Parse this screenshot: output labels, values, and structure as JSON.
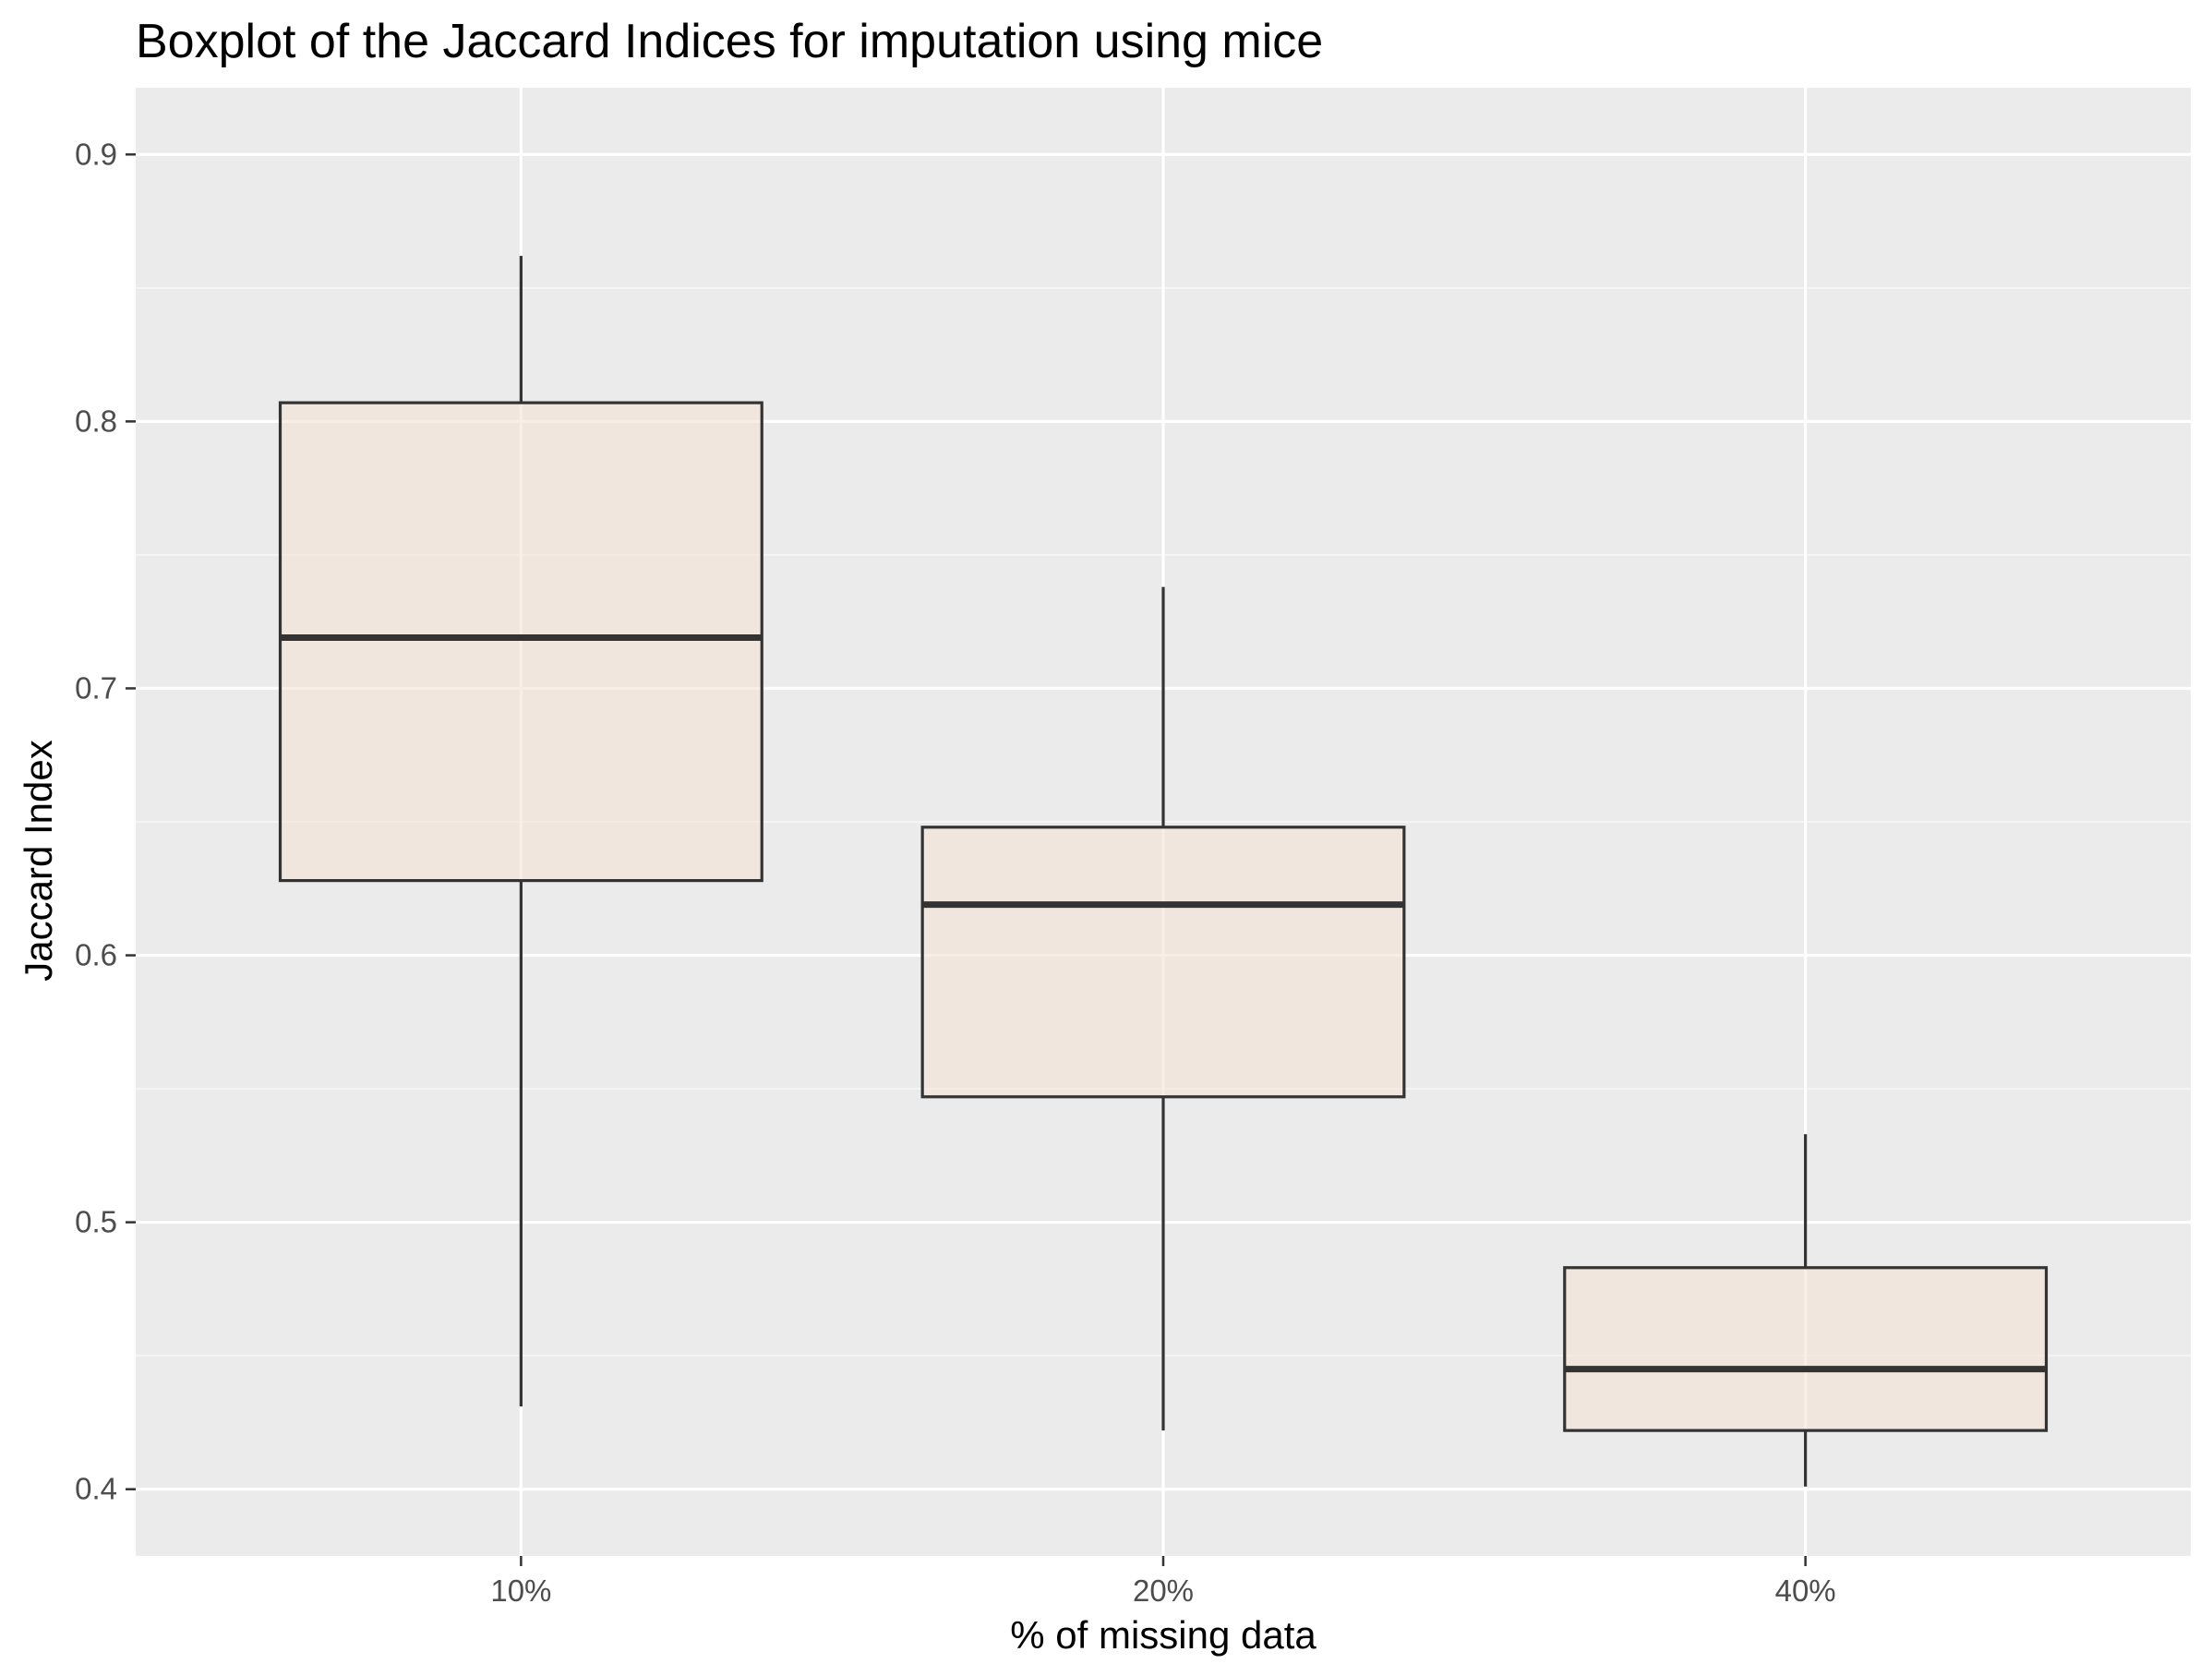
{
  "chart_data": {
    "type": "boxplot",
    "title": "Boxplot of the Jaccard Indices for imputation using mice",
    "xlabel": "% of missing data",
    "ylabel": "Jaccard Index",
    "categories": [
      "10%",
      "20%",
      "40%"
    ],
    "y_ticks": [
      "0.4",
      "0.5",
      "0.6",
      "0.7",
      "0.8",
      "0.9"
    ],
    "y_tick_values": [
      0.4,
      0.5,
      0.6,
      0.7,
      0.8,
      0.9
    ],
    "ylim": [
      0.375,
      0.925
    ],
    "grid": true,
    "boxes": [
      {
        "category": "10%",
        "min": 0.431,
        "q1": 0.628,
        "median": 0.719,
        "q3": 0.807,
        "max": 0.862
      },
      {
        "category": "20%",
        "min": 0.422,
        "q1": 0.547,
        "median": 0.619,
        "q3": 0.648,
        "max": 0.738
      },
      {
        "category": "40%",
        "min": 0.401,
        "q1": 0.422,
        "median": 0.445,
        "q3": 0.483,
        "max": 0.533
      }
    ],
    "colors": {
      "panel_background": "#ebebeb",
      "grid_major": "#ffffff",
      "grid_minor": "#f5f5f5",
      "box_fill": "#f5e3d6",
      "box_stroke": "#333333",
      "tick_text": "#4d4d4d",
      "tick_mark": "#333333"
    }
  }
}
